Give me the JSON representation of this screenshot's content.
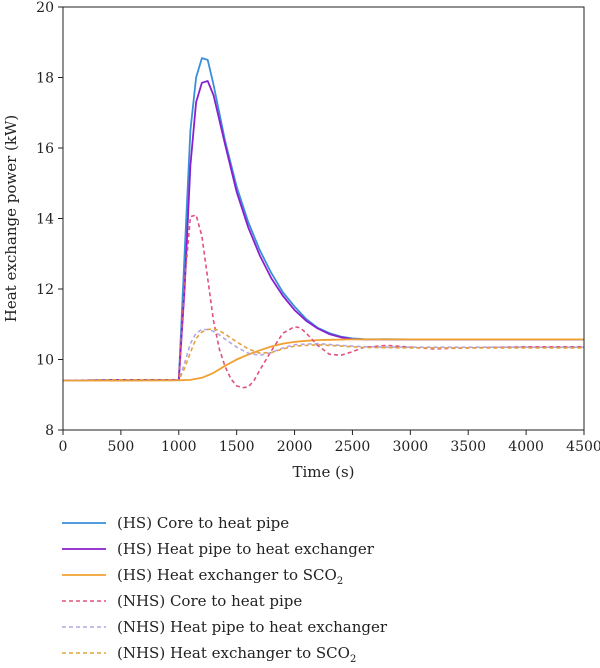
{
  "chart_data": {
    "type": "line",
    "xlabel": "Time (s)",
    "ylabel": "Heat exchange power (kW)",
    "xlim": [
      0,
      4500
    ],
    "ylim": [
      8,
      20
    ],
    "xticks": [
      0,
      500,
      1000,
      1500,
      2000,
      2500,
      3000,
      3500,
      4000,
      4500
    ],
    "yticks": [
      8,
      10,
      12,
      14,
      16,
      18,
      20
    ],
    "grid": false,
    "legend_position": "below-plot",
    "series": [
      {
        "name": "(HS) Core to heat pipe",
        "name_main": "(HS) Core to heat pipe",
        "name_sub": "",
        "color": "#3a8fd9",
        "dash": "solid",
        "x": [
          0,
          500,
          1000,
          1050,
          1100,
          1150,
          1200,
          1250,
          1300,
          1400,
          1500,
          1600,
          1700,
          1800,
          1900,
          2000,
          2100,
          2200,
          2300,
          2400,
          2500,
          2600,
          3000,
          3500,
          4000,
          4500
        ],
        "y": [
          9.4,
          9.42,
          9.42,
          13.0,
          16.5,
          18.0,
          18.55,
          18.5,
          17.8,
          16.2,
          14.9,
          13.9,
          13.1,
          12.45,
          11.9,
          11.5,
          11.15,
          10.9,
          10.75,
          10.65,
          10.6,
          10.58,
          10.57,
          10.57,
          10.57,
          10.57
        ]
      },
      {
        "name": "(HS) Heat pipe to heat exchanger",
        "name_main": "(HS) Heat pipe to heat exchanger",
        "name_sub": "",
        "color": "#8a1fcf",
        "dash": "solid",
        "x": [
          0,
          500,
          1000,
          1050,
          1100,
          1150,
          1200,
          1250,
          1300,
          1400,
          1500,
          1600,
          1700,
          1800,
          1900,
          2000,
          2100,
          2200,
          2300,
          2400,
          2500,
          2600,
          3000,
          3500,
          4000,
          4500
        ],
        "y": [
          9.4,
          9.42,
          9.42,
          12.0,
          15.5,
          17.3,
          17.85,
          17.9,
          17.5,
          16.1,
          14.75,
          13.75,
          12.95,
          12.3,
          11.8,
          11.4,
          11.1,
          10.88,
          10.72,
          10.63,
          10.58,
          10.57,
          10.57,
          10.57,
          10.57,
          10.57
        ]
      },
      {
        "name": "(HS) Heat exchanger to SCO2",
        "name_main": "(HS) Heat exchanger to SCO",
        "name_sub": "2",
        "color": "#f0a030",
        "dash": "solid",
        "x": [
          0,
          500,
          1000,
          1100,
          1200,
          1300,
          1400,
          1500,
          1600,
          1700,
          1800,
          1900,
          2000,
          2100,
          2200,
          2300,
          2500,
          3000,
          3500,
          4000,
          4500
        ],
        "y": [
          9.4,
          9.4,
          9.41,
          9.42,
          9.48,
          9.62,
          9.82,
          10.0,
          10.14,
          10.26,
          10.37,
          10.45,
          10.5,
          10.53,
          10.55,
          10.56,
          10.57,
          10.57,
          10.57,
          10.57,
          10.57
        ]
      },
      {
        "name": "(NHS) Core to heat pipe",
        "name_main": "(NHS) Core to heat pipe",
        "name_sub": "",
        "color": "#e2507a",
        "dash": "dashed",
        "x": [
          0,
          500,
          1000,
          1050,
          1100,
          1150,
          1200,
          1250,
          1300,
          1350,
          1400,
          1450,
          1500,
          1550,
          1600,
          1650,
          1700,
          1800,
          1900,
          2000,
          2050,
          2100,
          2200,
          2300,
          2400,
          2500,
          2600,
          2800,
          3000,
          3200,
          3500,
          4000,
          4500
        ],
        "y": [
          9.4,
          9.42,
          9.42,
          12.2,
          14.05,
          14.1,
          13.5,
          12.3,
          11.1,
          10.3,
          9.8,
          9.45,
          9.25,
          9.2,
          9.22,
          9.4,
          9.7,
          10.25,
          10.75,
          10.93,
          10.9,
          10.75,
          10.4,
          10.15,
          10.12,
          10.22,
          10.35,
          10.4,
          10.35,
          10.3,
          10.33,
          10.36,
          10.36
        ]
      },
      {
        "name": "(NHS) Heat pipe to heat exchanger",
        "name_main": "(NHS) Heat pipe to heat exchanger",
        "name_sub": "",
        "color": "#b3a6e6",
        "dash": "dashed",
        "x": [
          0,
          500,
          1000,
          1050,
          1100,
          1150,
          1200,
          1250,
          1300,
          1350,
          1400,
          1500,
          1600,
          1700,
          1800,
          1900,
          2000,
          2200,
          2400,
          2600,
          3000,
          3500,
          4000,
          4500
        ],
        "y": [
          9.4,
          9.42,
          9.42,
          9.9,
          10.45,
          10.75,
          10.85,
          10.85,
          10.8,
          10.7,
          10.58,
          10.35,
          10.18,
          10.12,
          10.2,
          10.33,
          10.42,
          10.45,
          10.4,
          10.36,
          10.35,
          10.35,
          10.35,
          10.35
        ]
      },
      {
        "name": "(NHS) Heat exchanger to SCO2",
        "name_main": "(NHS) Heat exchanger to SCO",
        "name_sub": "2",
        "color": "#e3a33a",
        "dash": "dashed",
        "x": [
          0,
          500,
          1000,
          1050,
          1100,
          1150,
          1200,
          1250,
          1300,
          1350,
          1400,
          1500,
          1600,
          1700,
          1800,
          1900,
          2000,
          2200,
          2400,
          2600,
          3000,
          3500,
          4000,
          4500
        ],
        "y": [
          9.4,
          9.42,
          9.42,
          9.75,
          10.2,
          10.6,
          10.78,
          10.85,
          10.87,
          10.82,
          10.72,
          10.5,
          10.3,
          10.18,
          10.2,
          10.3,
          10.38,
          10.42,
          10.38,
          10.34,
          10.33,
          10.33,
          10.33,
          10.33
        ]
      }
    ]
  }
}
